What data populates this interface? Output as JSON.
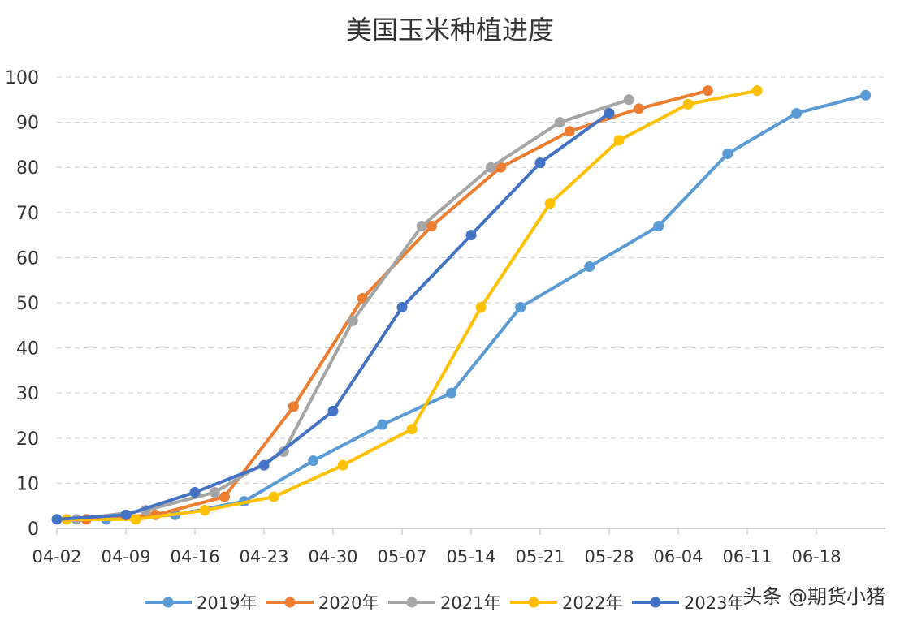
{
  "chart_data": {
    "type": "line",
    "title": "美国玉米种植进度",
    "xlabel": "",
    "ylabel": "",
    "x_axis": {
      "type": "date",
      "range": [
        "04-02",
        "06-25"
      ],
      "tick_labels": [
        "04-02",
        "04-09",
        "04-16",
        "04-23",
        "04-30",
        "05-07",
        "05-14",
        "05-21",
        "05-28",
        "06-04",
        "06-11",
        "06-18"
      ]
    },
    "ylim": [
      0,
      100
    ],
    "y_ticks": [
      0,
      10,
      20,
      30,
      40,
      50,
      60,
      70,
      80,
      90,
      100
    ],
    "grid": "horizontal dashed",
    "legend": "bottom",
    "series": [
      {
        "name": "2019年",
        "color": "#5B9BD5",
        "x": [
          "04-07",
          "04-14",
          "04-21",
          "04-28",
          "05-05",
          "05-12",
          "05-19",
          "05-26",
          "06-02",
          "06-09",
          "06-16",
          "06-23"
        ],
        "values": [
          2,
          3,
          6,
          15,
          23,
          30,
          49,
          58,
          67,
          83,
          92,
          96
        ]
      },
      {
        "name": "2020年",
        "color": "#ED7D31",
        "x": [
          "04-05",
          "04-12",
          "04-19",
          "04-26",
          "05-03",
          "05-10",
          "05-17",
          "05-24",
          "05-31",
          "06-07"
        ],
        "values": [
          2,
          3,
          7,
          27,
          51,
          67,
          80,
          88,
          93,
          97
        ]
      },
      {
        "name": "2021年",
        "color": "#A5A5A5",
        "x": [
          "04-04",
          "04-11",
          "04-18",
          "04-25",
          "05-02",
          "05-09",
          "05-16",
          "05-23",
          "05-30"
        ],
        "values": [
          2,
          4,
          8,
          17,
          46,
          67,
          80,
          90,
          95
        ]
      },
      {
        "name": "2022年",
        "color": "#FFC000",
        "x": [
          "04-03",
          "04-10",
          "04-17",
          "04-24",
          "05-01",
          "05-08",
          "05-15",
          "05-22",
          "05-29",
          "06-05",
          "06-12"
        ],
        "values": [
          2,
          2,
          4,
          7,
          14,
          22,
          49,
          72,
          86,
          94,
          97
        ]
      },
      {
        "name": "2023年",
        "color": "#4472C4",
        "x": [
          "04-02",
          "04-09",
          "04-16",
          "04-23",
          "04-30",
          "05-07",
          "05-14",
          "05-21",
          "05-28"
        ],
        "values": [
          2,
          3,
          8,
          14,
          26,
          49,
          65,
          81,
          92
        ]
      }
    ]
  },
  "watermark": "头条 @期货小猪"
}
